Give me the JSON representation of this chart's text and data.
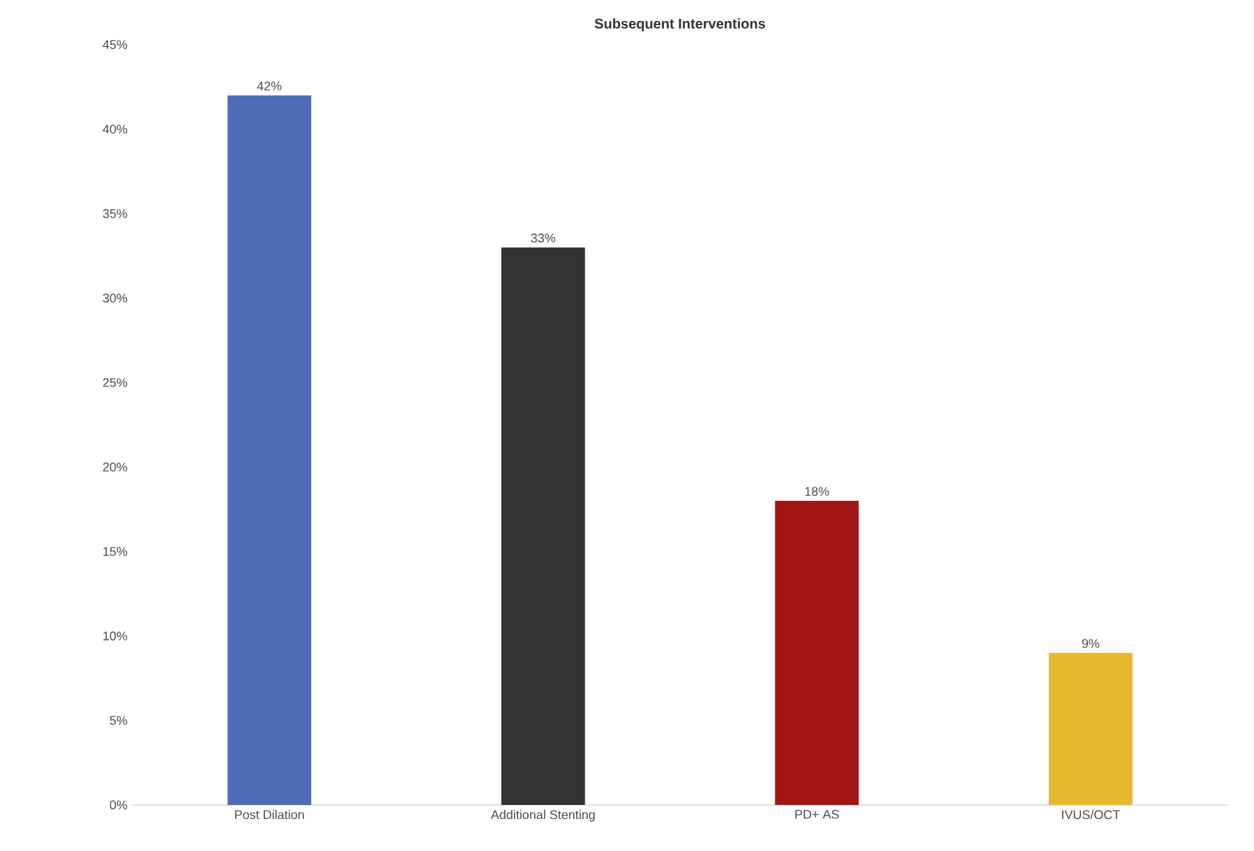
{
  "chart_data": {
    "type": "bar",
    "title": "Subsequent Interventions",
    "categories": [
      "Post Dilation",
      "Additional Stenting",
      "PD+ AS",
      "IVUS/OCT"
    ],
    "values": [
      42,
      33,
      18,
      9
    ],
    "colors": [
      "#4f6bb5",
      "#333333",
      "#a31515",
      "#e8b92e"
    ],
    "value_labels": [
      "42%",
      "33%",
      "18%",
      "9%"
    ],
    "ylim": [
      0,
      45
    ],
    "yticks": [
      {
        "value": 0,
        "label": "0%"
      },
      {
        "value": 5,
        "label": "5%"
      },
      {
        "value": 10,
        "label": "10%"
      },
      {
        "value": 15,
        "label": "15%"
      },
      {
        "value": 20,
        "label": "20%"
      },
      {
        "value": 25,
        "label": "25%"
      },
      {
        "value": 30,
        "label": "30%"
      },
      {
        "value": 35,
        "label": "35%"
      },
      {
        "value": 40,
        "label": "40%"
      },
      {
        "value": 45,
        "label": "45%"
      }
    ]
  }
}
